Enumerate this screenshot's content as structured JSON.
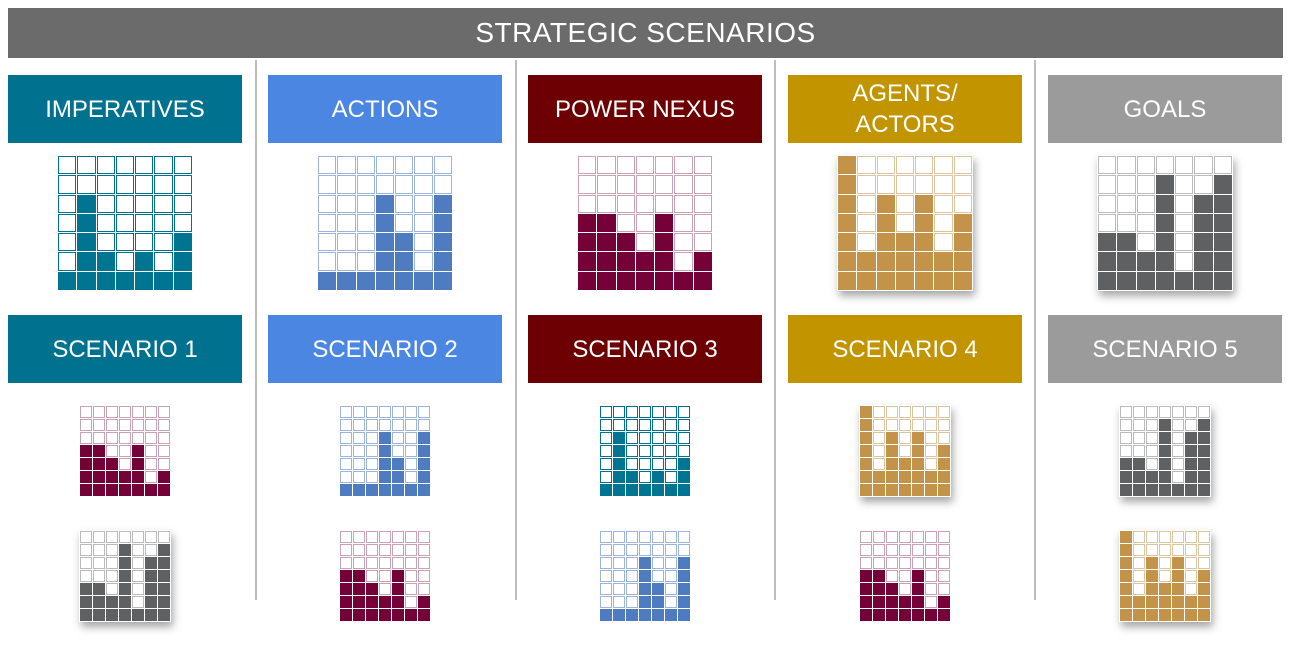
{
  "title": "STRATEGIC SCENARIOS",
  "colors": {
    "teal": "#00728f",
    "blue": "#4b86e3",
    "maroon": "#6c0003",
    "gold": "#c29400",
    "gray": "#9b9b9b",
    "title_bar": "#6b6b6b"
  },
  "palettes": {
    "teal": {
      "fill": "#007591",
      "empty_border": "#00728f"
    },
    "blue": {
      "fill": "#4f7cc0",
      "empty_border": "#9db5dc"
    },
    "maroon": {
      "fill": "#740239",
      "empty_border": "#c9a3b4"
    },
    "gold": {
      "fill": "#c39349",
      "empty_border": "#dbc4a0"
    },
    "gray": {
      "fill": "#5f6062",
      "empty_border": "#bbbbbb"
    }
  },
  "patterns": {
    "A": [
      1,
      5,
      2,
      1,
      2,
      1,
      3
    ],
    "B": [
      1,
      1,
      1,
      5,
      3,
      1,
      5
    ],
    "C": [
      4,
      4,
      3,
      2,
      4,
      1,
      2
    ],
    "D": [
      7,
      2,
      5,
      3,
      5,
      2,
      4
    ],
    "E": [
      3,
      3,
      2,
      6,
      1,
      5,
      6
    ]
  },
  "columns": [
    {
      "name": "imperatives",
      "category_label": "IMPERATIVES",
      "category_color": "teal",
      "category_pattern": "A",
      "scenario_label": "SCENARIO 1",
      "scenario_grids": [
        {
          "color": "maroon",
          "pattern": "C"
        },
        {
          "color": "gray",
          "pattern": "E"
        }
      ]
    },
    {
      "name": "actions",
      "category_label": "ACTIONS",
      "category_color": "blue",
      "category_pattern": "B",
      "scenario_label": "SCENARIO 2",
      "scenario_grids": [
        {
          "color": "blue",
          "pattern": "B"
        },
        {
          "color": "maroon",
          "pattern": "C"
        }
      ]
    },
    {
      "name": "power-nexus",
      "category_label": "POWER NEXUS",
      "category_color": "maroon",
      "category_pattern": "C",
      "scenario_label": "SCENARIO 3",
      "scenario_grids": [
        {
          "color": "teal",
          "pattern": "A"
        },
        {
          "color": "blue",
          "pattern": "B"
        }
      ]
    },
    {
      "name": "agents-actors",
      "category_label": "AGENTS/\nACTORS",
      "category_color": "gold",
      "category_pattern": "D",
      "scenario_label": "SCENARIO 4",
      "scenario_grids": [
        {
          "color": "gold",
          "pattern": "D"
        },
        {
          "color": "maroon",
          "pattern": "C"
        }
      ]
    },
    {
      "name": "goals",
      "category_label": "GOALS",
      "category_color": "gray",
      "category_pattern": "E",
      "scenario_label": "SCENARIO 5",
      "scenario_grids": [
        {
          "color": "gray",
          "pattern": "E"
        },
        {
          "color": "gold",
          "pattern": "D"
        }
      ]
    }
  ]
}
